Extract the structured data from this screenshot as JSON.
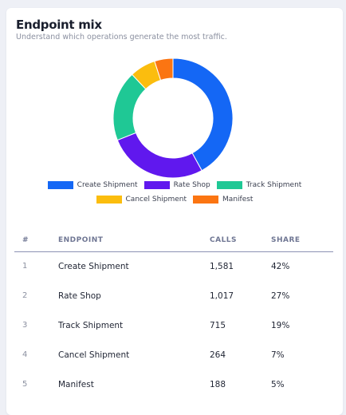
{
  "header": {
    "title": "Endpoint mix",
    "subtitle": "Understand which operations generate the most traffic."
  },
  "chart_data": {
    "type": "pie",
    "categories": [
      "Create Shipment",
      "Rate Shop",
      "Track Shipment",
      "Cancel Shipment",
      "Manifest"
    ],
    "values": [
      1581,
      1017,
      715,
      264,
      188
    ],
    "colors": [
      "#1467f5",
      "#6018ee",
      "#1fc895",
      "#fbbd0e",
      "#fb7512"
    ],
    "legend_position": "bottom",
    "title": "",
    "xlabel": "",
    "ylabel": ""
  },
  "table": {
    "headers": [
      "#",
      "ENDPOINT",
      "CALLS",
      "SHARE"
    ],
    "rows": [
      {
        "rank": "1",
        "endpoint": "Create Shipment",
        "calls": "1,581",
        "share": "42%"
      },
      {
        "rank": "2",
        "endpoint": "Rate Shop",
        "calls": "1,017",
        "share": "27%"
      },
      {
        "rank": "3",
        "endpoint": "Track Shipment",
        "calls": "715",
        "share": "19%"
      },
      {
        "rank": "4",
        "endpoint": "Cancel Shipment",
        "calls": "264",
        "share": "7%"
      },
      {
        "rank": "5",
        "endpoint": "Manifest",
        "calls": "188",
        "share": "5%"
      }
    ]
  }
}
